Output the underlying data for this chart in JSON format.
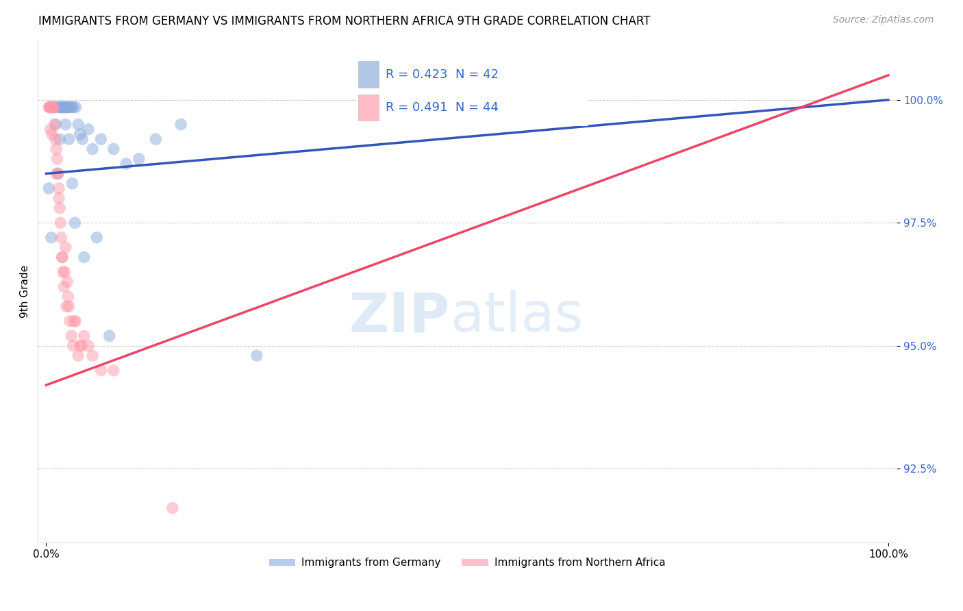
{
  "title": "IMMIGRANTS FROM GERMANY VS IMMIGRANTS FROM NORTHERN AFRICA 9TH GRADE CORRELATION CHART",
  "source_text": "Source: ZipAtlas.com",
  "ylabel": "9th Grade",
  "xlim": [
    -1,
    101
  ],
  "ylim": [
    91.0,
    101.2
  ],
  "yticks": [
    92.5,
    95.0,
    97.5,
    100.0
  ],
  "xticks": [
    0,
    100
  ],
  "xticklabels": [
    "0.0%",
    "100.0%"
  ],
  "yticklabels": [
    "92.5%",
    "95.0%",
    "97.5%",
    "100.0%"
  ],
  "blue_R": 0.423,
  "blue_N": 42,
  "pink_R": 0.491,
  "pink_N": 44,
  "legend_label_blue": "Immigrants from Germany",
  "legend_label_pink": "Immigrants from Northern Africa",
  "blue_color": "#88AADD",
  "pink_color": "#FF99AA",
  "trend_blue_color": "#3355BB",
  "trend_pink_color": "#EE4466",
  "legend_R_color": "#3366CC",
  "blue_scatter_x": [
    0.5,
    0.8,
    1.0,
    1.2,
    1.5,
    1.7,
    1.8,
    1.9,
    2.0,
    2.1,
    2.2,
    2.4,
    2.5,
    2.6,
    2.8,
    3.0,
    3.2,
    3.5,
    3.8,
    4.0,
    4.3,
    5.0,
    5.5,
    6.5,
    8.0,
    9.5,
    11.0,
    13.0,
    16.0,
    0.3,
    0.6,
    1.1,
    1.4,
    1.6,
    2.3,
    2.7,
    3.1,
    3.4,
    4.5,
    6.0,
    7.5,
    25.0
  ],
  "blue_scatter_y": [
    99.85,
    99.85,
    99.85,
    99.85,
    99.85,
    99.85,
    99.85,
    99.85,
    99.85,
    99.85,
    99.85,
    99.85,
    99.85,
    99.85,
    99.85,
    99.85,
    99.85,
    99.85,
    99.5,
    99.3,
    99.2,
    99.4,
    99.0,
    99.2,
    99.0,
    98.7,
    98.8,
    99.2,
    99.5,
    98.2,
    97.2,
    99.5,
    98.5,
    99.2,
    99.5,
    99.2,
    98.3,
    97.5,
    96.8,
    97.2,
    95.2,
    94.8
  ],
  "pink_scatter_x": [
    0.3,
    0.4,
    0.5,
    0.6,
    0.7,
    0.8,
    0.9,
    1.0,
    1.1,
    1.2,
    1.3,
    1.4,
    1.5,
    1.6,
    1.7,
    1.8,
    1.9,
    2.0,
    2.1,
    2.2,
    2.3,
    2.4,
    2.5,
    2.6,
    2.8,
    3.0,
    3.2,
    3.5,
    3.8,
    4.0,
    4.5,
    5.0,
    5.5,
    6.5,
    8.0,
    0.5,
    0.7,
    1.2,
    1.5,
    1.9,
    2.7,
    3.3,
    4.2,
    15.0
  ],
  "pink_scatter_y": [
    99.85,
    99.85,
    99.85,
    99.85,
    99.85,
    99.85,
    99.85,
    99.5,
    99.2,
    99.0,
    98.8,
    98.5,
    98.2,
    97.8,
    97.5,
    97.2,
    96.8,
    96.5,
    96.2,
    96.5,
    97.0,
    95.8,
    96.3,
    96.0,
    95.5,
    95.2,
    95.0,
    95.5,
    94.8,
    95.0,
    95.2,
    95.0,
    94.8,
    94.5,
    94.5,
    99.4,
    99.3,
    98.5,
    98.0,
    96.8,
    95.8,
    95.5,
    95.0,
    91.7
  ],
  "blue_trend_x0": 0,
  "blue_trend_y0": 98.5,
  "blue_trend_x1": 100,
  "blue_trend_y1": 100.0,
  "pink_trend_x0": 0,
  "pink_trend_y0": 94.2,
  "pink_trend_x1": 100,
  "pink_trend_y1": 100.5
}
